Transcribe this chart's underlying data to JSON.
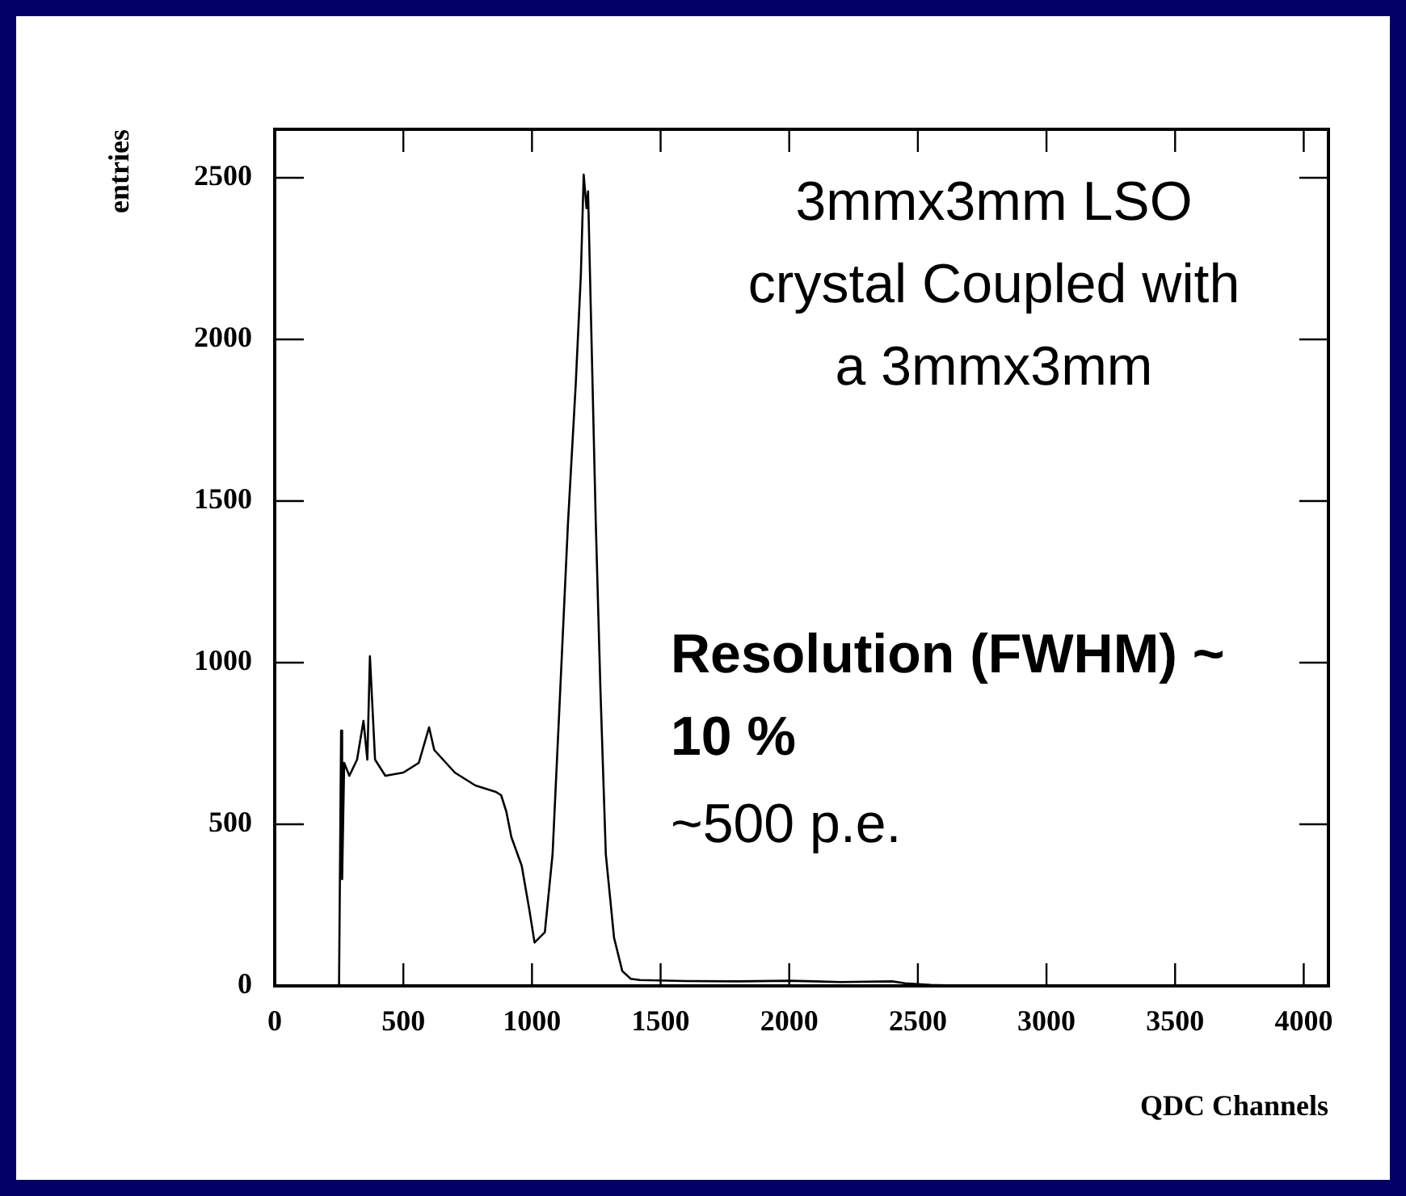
{
  "chart_data": {
    "type": "line",
    "xlabel": "QDC Channels",
    "ylabel": "entries",
    "color": "#000000",
    "x": [
      240,
      250,
      258,
      262,
      270,
      290,
      320,
      345,
      360,
      370,
      390,
      430,
      500,
      560,
      600,
      620,
      700,
      780,
      860,
      880,
      900,
      920,
      960,
      990,
      1010,
      1050,
      1080,
      1110,
      1140,
      1170,
      1190,
      1201,
      1212,
      1218,
      1233,
      1248,
      1266,
      1287,
      1319,
      1351,
      1384,
      1420,
      1600,
      1800,
      2000,
      2200,
      2400,
      2450,
      2550,
      2700,
      3000,
      3500,
      4000
    ],
    "values": [
      0,
      0,
      790,
      330,
      690,
      650,
      700,
      820,
      700,
      1020,
      700,
      650,
      660,
      690,
      800,
      730,
      660,
      620,
      600,
      590,
      540,
      460,
      372,
      234,
      134,
      166,
      407,
      918,
      1433,
      1860,
      2200,
      2510,
      2406,
      2458,
      1944,
      1433,
      918,
      407,
      149,
      46,
      22,
      18,
      15,
      14,
      16,
      12,
      14,
      8,
      3,
      0,
      0,
      0,
      0
    ],
    "xlim": [
      0,
      4096
    ],
    "ylim": [
      0,
      2650
    ],
    "xticks": [
      0,
      500,
      1000,
      1500,
      2000,
      2500,
      3000,
      3500,
      4000
    ],
    "yticks": [
      0,
      500,
      1000,
      1500,
      2000,
      2500
    ],
    "annotations": [
      "3mmx3mm LSO crystal Coupled with a 3mmx3mm",
      "Resolution (FWHM) ~ 10 %",
      "~500 p.e."
    ]
  }
}
